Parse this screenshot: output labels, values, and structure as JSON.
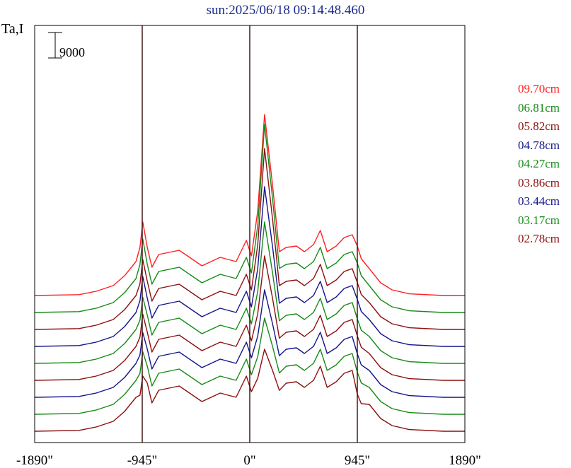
{
  "chart_data": {
    "type": "line",
    "title": "sun:2025/06/18 09:14:48.460",
    "ylabel": "Ta,I",
    "scale_bar_label": "9000",
    "scale_bar_value": 9000,
    "xlim": [
      -1890,
      1890
    ],
    "x_ticks": [
      -1890,
      -945,
      0,
      945,
      1890
    ],
    "x_tick_labels": [
      "-1890\"",
      "-945\"",
      "0\"",
      "945\"",
      "1890\""
    ],
    "vertical_lines": [
      -945,
      0,
      945
    ],
    "series": [
      {
        "name": "09.70cm",
        "color": "#ff2020",
        "offset": 51000,
        "limb": 1,
        "peak": 1.0,
        "x": [
          -1890,
          -1500,
          -1350,
          -1200,
          -1100,
          -1000,
          -965,
          -940,
          -900,
          -860,
          -800,
          -620,
          -420,
          -260,
          -120,
          -30,
          15,
          70,
          130,
          200,
          260,
          320,
          410,
          480,
          560,
          620,
          680,
          760,
          830,
          900,
          945,
          980,
          1050,
          1150,
          1250,
          1400,
          1700,
          1890
        ],
        "y": [
          0,
          300,
          1500,
          3500,
          7000,
          12000,
          17000,
          26000,
          17000,
          10000,
          14500,
          16000,
          10500,
          13500,
          12000,
          19500,
          14000,
          30000,
          64000,
          39000,
          15500,
          17000,
          17500,
          15500,
          18000,
          23000,
          15500,
          17500,
          20500,
          21500,
          17500,
          13000,
          9500,
          4500,
          2000,
          600,
          0,
          0
        ]
      },
      {
        "name": "06.81cm",
        "color": "#178a17",
        "offset": 45000,
        "limb": 1,
        "peak": 1.05,
        "x": [
          -1890,
          -1500,
          -1350,
          -1200,
          -1100,
          -1000,
          -965,
          -940,
          -900,
          -860,
          -800,
          -620,
          -420,
          -260,
          -120,
          -30,
          15,
          70,
          130,
          200,
          260,
          320,
          410,
          480,
          560,
          620,
          680,
          760,
          830,
          900,
          945,
          980,
          1050,
          1150,
          1250,
          1400,
          1700,
          1890
        ],
        "y": [
          0,
          300,
          1500,
          3500,
          7000,
          12000,
          17000,
          26000,
          17000,
          10000,
          14500,
          16000,
          10500,
          13500,
          12000,
          19500,
          14000,
          30000,
          64000,
          39000,
          15500,
          17000,
          17500,
          15500,
          18000,
          23000,
          15500,
          17500,
          20500,
          21500,
          17500,
          13000,
          9500,
          4500,
          2000,
          600,
          0,
          0
        ]
      },
      {
        "name": "05.82cm",
        "color": "#8c0f0f",
        "offset": 39000,
        "limb": 0.95,
        "peak": 1.0,
        "x": [
          -1890,
          -1500,
          -1350,
          -1200,
          -1100,
          -1000,
          -965,
          -940,
          -900,
          -860,
          -800,
          -620,
          -420,
          -260,
          -120,
          -30,
          15,
          70,
          130,
          200,
          260,
          320,
          410,
          480,
          560,
          620,
          680,
          760,
          830,
          900,
          945,
          980,
          1050,
          1150,
          1250,
          1400,
          1700,
          1890
        ],
        "y": [
          0,
          300,
          1500,
          3500,
          7000,
          12000,
          17000,
          26000,
          17000,
          10000,
          14500,
          16000,
          10500,
          13500,
          12000,
          19500,
          14000,
          30000,
          64000,
          39000,
          15500,
          17000,
          17500,
          15500,
          18000,
          23000,
          15500,
          17500,
          20500,
          21500,
          17500,
          13000,
          9500,
          4500,
          2000,
          600,
          0,
          0
        ]
      },
      {
        "name": "04.78cm",
        "color": "#14148c",
        "offset": 33000,
        "limb": 0.95,
        "peak": 0.85,
        "x": [
          -1890,
          -1500,
          -1350,
          -1200,
          -1100,
          -1000,
          -965,
          -940,
          -900,
          -860,
          -800,
          -620,
          -420,
          -260,
          -120,
          -30,
          15,
          70,
          130,
          200,
          260,
          320,
          410,
          480,
          560,
          620,
          680,
          760,
          830,
          900,
          945,
          980,
          1050,
          1150,
          1250,
          1400,
          1700,
          1890
        ],
        "y": [
          0,
          300,
          1500,
          3500,
          7000,
          12000,
          17000,
          26000,
          17000,
          10000,
          14500,
          16000,
          10500,
          13500,
          12000,
          19500,
          14000,
          30000,
          64000,
          39000,
          15500,
          17000,
          17500,
          15500,
          18000,
          23000,
          15500,
          17500,
          20500,
          21500,
          17500,
          13000,
          9500,
          4500,
          2000,
          600,
          0,
          0
        ]
      },
      {
        "name": "04.27cm",
        "color": "#178a17",
        "offset": 27000,
        "limb": 0.9,
        "peak": 0.72,
        "x": [
          -1890,
          -1500,
          -1350,
          -1200,
          -1100,
          -1000,
          -965,
          -940,
          -900,
          -860,
          -800,
          -620,
          -420,
          -260,
          -120,
          -30,
          15,
          70,
          130,
          200,
          260,
          320,
          410,
          480,
          560,
          620,
          680,
          760,
          830,
          900,
          945,
          980,
          1050,
          1150,
          1250,
          1400,
          1700,
          1890
        ],
        "y": [
          0,
          300,
          1500,
          3500,
          7000,
          12000,
          17000,
          26000,
          17000,
          10000,
          14500,
          16000,
          10500,
          13500,
          12000,
          19500,
          14000,
          30000,
          64000,
          39000,
          15500,
          17000,
          17500,
          15500,
          18000,
          23000,
          15500,
          17500,
          20500,
          21500,
          17500,
          13000,
          9500,
          4500,
          2000,
          600,
          0,
          0
        ]
      },
      {
        "name": "03.86cm",
        "color": "#8c0f0f",
        "offset": 21000,
        "limb": 0.9,
        "peak": 0.6,
        "x": [
          -1890,
          -1500,
          -1350,
          -1200,
          -1100,
          -1000,
          -965,
          -940,
          -900,
          -860,
          -800,
          -620,
          -420,
          -260,
          -120,
          -30,
          15,
          70,
          130,
          200,
          260,
          320,
          410,
          480,
          560,
          620,
          680,
          760,
          830,
          900,
          945,
          980,
          1050,
          1150,
          1250,
          1400,
          1700,
          1890
        ],
        "y": [
          0,
          300,
          1500,
          3500,
          7000,
          12000,
          17000,
          26000,
          17000,
          10000,
          14500,
          16000,
          10500,
          13500,
          12000,
          19500,
          14000,
          30000,
          64000,
          39000,
          15500,
          17000,
          17500,
          15500,
          18000,
          23000,
          15500,
          17500,
          20500,
          21500,
          17500,
          13000,
          9500,
          4500,
          2000,
          600,
          0,
          0
        ]
      },
      {
        "name": "03.44cm",
        "color": "#14148c",
        "offset": 15000,
        "limb": 0.88,
        "peak": 0.48,
        "x": [
          -1890,
          -1500,
          -1350,
          -1200,
          -1100,
          -1000,
          -965,
          -940,
          -900,
          -860,
          -800,
          -620,
          -420,
          -260,
          -120,
          -30,
          15,
          70,
          130,
          200,
          260,
          320,
          410,
          480,
          560,
          620,
          680,
          760,
          830,
          900,
          945,
          980,
          1050,
          1150,
          1250,
          1400,
          1700,
          1890
        ],
        "y": [
          0,
          300,
          1500,
          3500,
          7000,
          12000,
          17000,
          26000,
          17000,
          10000,
          14500,
          16000,
          10500,
          13500,
          12000,
          19500,
          14000,
          30000,
          64000,
          39000,
          15500,
          17000,
          17500,
          15500,
          18000,
          23000,
          15500,
          17500,
          20500,
          21500,
          17500,
          13000,
          9500,
          4500,
          2000,
          600,
          0,
          0
        ]
      },
      {
        "name": "03.17cm",
        "color": "#178a17",
        "offset": 9000,
        "limb": 0.85,
        "peak": 0.4,
        "x": [
          -1890,
          -1500,
          -1350,
          -1200,
          -1100,
          -1000,
          -965,
          -940,
          -900,
          -860,
          -800,
          -620,
          -420,
          -260,
          -120,
          -30,
          15,
          70,
          130,
          200,
          260,
          320,
          410,
          480,
          560,
          620,
          680,
          760,
          830,
          900,
          945,
          980,
          1050,
          1150,
          1250,
          1400,
          1700,
          1890
        ],
        "y": [
          0,
          300,
          1500,
          3500,
          7000,
          12000,
          17000,
          26000,
          17000,
          10000,
          14500,
          16000,
          10500,
          13500,
          12000,
          19500,
          14000,
          30000,
          64000,
          39000,
          15500,
          17000,
          17500,
          15500,
          18000,
          23000,
          15500,
          17500,
          20500,
          21500,
          17500,
          13000,
          9500,
          4500,
          2000,
          600,
          0,
          0
        ]
      },
      {
        "name": "02.78cm",
        "color": "#8c0f0f",
        "offset": 3000,
        "limb": 0.75,
        "peak": 0.3,
        "x": [
          -1890,
          -1500,
          -1350,
          -1200,
          -1100,
          -1000,
          -965,
          -940,
          -900,
          -860,
          -800,
          -620,
          -420,
          -260,
          -120,
          -30,
          15,
          70,
          130,
          200,
          260,
          320,
          410,
          480,
          560,
          620,
          680,
          760,
          830,
          900,
          945,
          980,
          1050,
          1150,
          1250,
          1400,
          1700,
          1890
        ],
        "y": [
          0,
          300,
          1500,
          3500,
          7000,
          12000,
          17000,
          26000,
          17000,
          10000,
          14500,
          16000,
          10500,
          13500,
          12000,
          19500,
          14000,
          30000,
          64000,
          39000,
          15500,
          17000,
          17500,
          15500,
          18000,
          23000,
          15500,
          17500,
          20500,
          21500,
          17500,
          13000,
          9500,
          4500,
          2000,
          600,
          0,
          0
        ]
      }
    ],
    "legend": [
      "09.70cm",
      "06.81cm",
      "05.82cm",
      "04.78cm",
      "04.27cm",
      "03.86cm",
      "03.44cm",
      "03.17cm",
      "02.78cm"
    ],
    "legend_position": "right",
    "grid": false
  }
}
